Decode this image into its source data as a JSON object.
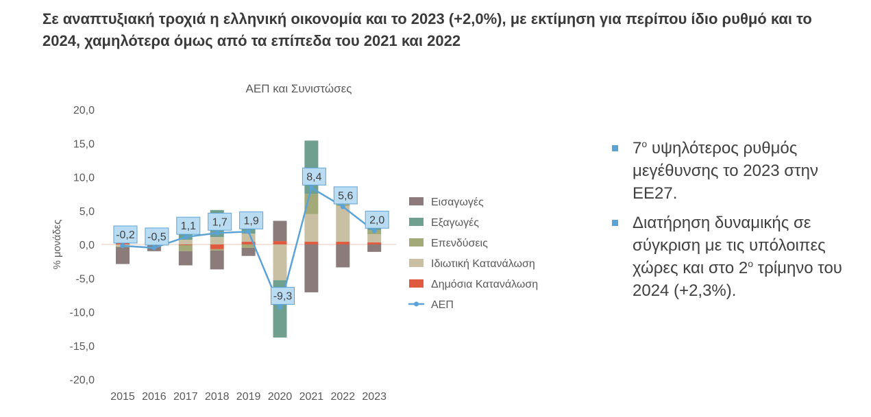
{
  "headline": "Σε αναπτυξιακή τροχιά η ελληνική οικονομία και το 2023 (+2,0%), με εκτίμηση για περίπου ίδιο ρυθμό και το 2024, χαμηλότερα όμως από τα επίπεδα του 2021 και 2022",
  "bullets": [
    {
      "pre": "7",
      "sup": "ο",
      "post": " υψηλότερος ρυθμός μεγέθυνσης το 2023 στην ΕΕ27."
    },
    {
      "pre": "Διατήρηση δυναμικής σε σύγκριση με τις υπόλοιπες χώρες και στο 2",
      "sup": "ο",
      "post": " τρίμηνο του 2024 (+2,3%)."
    }
  ],
  "colors": {
    "imports": "#8c7b7b",
    "exports": "#6f9f8e",
    "investment": "#a3aa78",
    "private_consumption": "#c9bfa3",
    "public_consumption": "#e05a3f",
    "gdp": "#5ba3d6"
  },
  "chart_data": {
    "type": "bar",
    "stacked": true,
    "title": "ΑΕΠ και Συνιστώσες",
    "ylabel": "% μονάδες",
    "xlabel": "",
    "ylim": [
      -20,
      20
    ],
    "yticks": [
      20,
      15,
      10,
      5,
      0,
      -5,
      -10,
      -15,
      -20
    ],
    "ytick_labels": [
      "20,0",
      "15,0",
      "10,0",
      "5,0",
      "0,0",
      "-5,0",
      "-10,0",
      "-15,0",
      "-20,0"
    ],
    "categories": [
      "2015",
      "2016",
      "2017",
      "2018",
      "2019",
      "2020",
      "2021",
      "2022",
      "2023"
    ],
    "series": [
      {
        "key": "public_consumption",
        "name": "Δημόσια Κατανάλωση",
        "values": [
          0.3,
          -0.1,
          -0.1,
          -0.7,
          0.4,
          0.5,
          0.4,
          0.4,
          0.3
        ]
      },
      {
        "key": "private_consumption",
        "name": "Ιδιωτική Κατανάλωση",
        "values": [
          -0.3,
          0.0,
          0.7,
          1.1,
          1.2,
          -5.3,
          4.1,
          5.3,
          1.2
        ]
      },
      {
        "key": "investment",
        "name": "Επενδύσεις",
        "values": [
          -0.1,
          0.0,
          -0.9,
          -0.2,
          -0.5,
          0.0,
          3.0,
          0.6,
          0.6
        ]
      },
      {
        "key": "exports",
        "name": "Εξαγωγές",
        "values": [
          0.0,
          0.6,
          1.6,
          4.0,
          1.3,
          -8.5,
          7.9,
          0.7,
          0.5
        ]
      },
      {
        "key": "imports",
        "name": "Εισαγωγές",
        "values": [
          -2.5,
          -0.9,
          -2.1,
          -2.8,
          -1.2,
          3.0,
          -7.1,
          -3.4,
          -1.1
        ]
      }
    ],
    "line": {
      "key": "gdp",
      "name": "ΑΕΠ",
      "values": [
        -0.2,
        -0.5,
        1.1,
        1.7,
        1.9,
        -9.3,
        8.4,
        5.6,
        2.0
      ],
      "labels": [
        "-0,2",
        "-0,5",
        "1,1",
        "1,7",
        "1,9",
        "-9,3",
        "8,4",
        "5,6",
        "2,0"
      ]
    },
    "legend_order": [
      "imports",
      "exports",
      "investment",
      "private_consumption",
      "public_consumption",
      "gdp"
    ],
    "legend_position": "right"
  }
}
